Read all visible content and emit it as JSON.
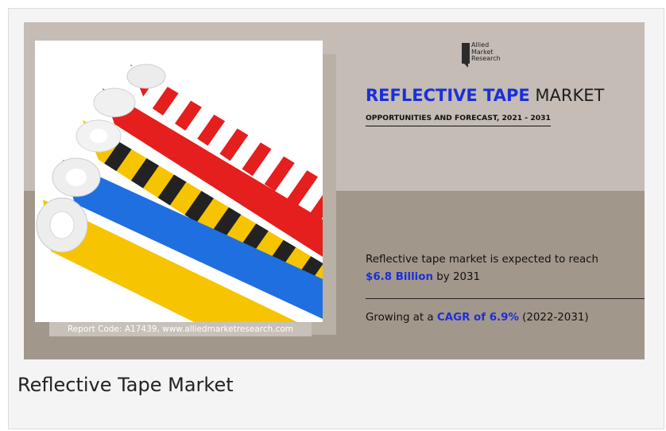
{
  "brand": {
    "logo_lines": [
      "Allied",
      "Market",
      "Research"
    ]
  },
  "banner": {
    "title_accent": "REFLECTIVE TAPE",
    "title_rest": "MARKET",
    "subtitle": "OPPORTUNITIES AND FORECAST, 2021 - 2031",
    "stat1_prefix": "Reflective tape market is expected to reach",
    "stat1_value": "$6.8 Billion",
    "stat1_suffix": "by 2031",
    "stat2_prefix": "Growing at a",
    "stat2_value": "CAGR of 6.9%",
    "stat2_suffix": "(2022-2031)",
    "report_code": "Report Code: A17439, www.alliedmarketresearch.com"
  },
  "caption": "Reflective Tape Market",
  "colors": {
    "accent": "#1b2fd9",
    "banner_top": "#c4bcb5",
    "banner_bottom": "#a2978b",
    "tape_red": "#e51e1e",
    "tape_yellow": "#f6c400",
    "tape_blue": "#1f6fe0"
  }
}
